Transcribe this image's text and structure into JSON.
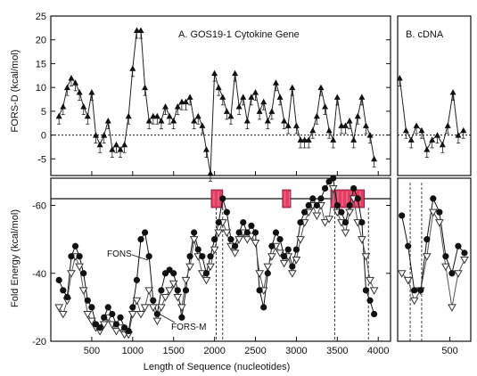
{
  "chart_data": [
    {
      "id": "A",
      "type": "line",
      "title": "A. GOS19-1 Cytokine Gene",
      "ylabel": "FORS-D (kcal/mol)",
      "xlim": [
        0,
        4150
      ],
      "ylim": [
        -8.5,
        25
      ],
      "yticks": [
        -5,
        0,
        5,
        10,
        15,
        20,
        25
      ],
      "series": [
        {
          "marker": "triangle",
          "x": [
            100,
            150,
            200,
            250,
            300,
            350,
            400,
            450,
            500,
            550,
            600,
            650,
            700,
            750,
            800,
            850,
            900,
            950,
            1000,
            1050,
            1100,
            1150,
            1200,
            1250,
            1300,
            1350,
            1400,
            1450,
            1500,
            1550,
            1600,
            1650,
            1700,
            1750,
            1800,
            1850,
            1900,
            1950,
            2000,
            2050,
            2100,
            2150,
            2200,
            2250,
            2300,
            2350,
            2400,
            2450,
            2500,
            2550,
            2600,
            2650,
            2700,
            2750,
            2800,
            2850,
            2900,
            2950,
            3000,
            3050,
            3100,
            3150,
            3200,
            3250,
            3300,
            3350,
            3400,
            3450,
            3500,
            3550,
            3600,
            3650,
            3700,
            3750,
            3800,
            3850,
            3900,
            3950
          ],
          "y": [
            4,
            6,
            10,
            12,
            11,
            9,
            6,
            4,
            9,
            0,
            -2,
            0,
            3,
            -3,
            -2,
            -3,
            -2,
            4,
            14,
            22,
            22,
            10,
            3,
            4,
            4,
            3,
            6,
            4,
            3,
            6,
            7,
            7,
            8,
            3,
            4,
            2,
            -3,
            -8,
            13,
            10,
            8,
            5,
            4,
            13,
            6,
            8,
            3,
            8,
            9,
            5,
            7,
            3,
            5,
            11,
            8,
            3,
            2,
            10,
            2,
            -1,
            -1,
            -1,
            1,
            4,
            10,
            6,
            1,
            -1,
            8,
            2,
            2,
            3,
            -1,
            4,
            8,
            2,
            0,
            -5
          ]
        }
      ],
      "reference_line": 0
    },
    {
      "id": "B",
      "type": "line",
      "title": "B. cDNA",
      "ylim": [
        -8.5,
        25
      ],
      "series": [
        {
          "marker": "triangle",
          "x": [
            20,
            80,
            130,
            180,
            230,
            280,
            330,
            380,
            430,
            480,
            530,
            580,
            630
          ],
          "y": [
            12,
            1,
            -1,
            2,
            1,
            -3,
            -1,
            0,
            -2,
            2,
            9,
            0,
            1
          ]
        }
      ]
    },
    {
      "id": "A-lower",
      "type": "line",
      "xlabel": "Length of Sequence (nucleotides)",
      "ylabel": "Fold Energy (kcal/mol)",
      "xlim": [
        0,
        4150
      ],
      "ylim": [
        -20,
        -68
      ],
      "xticks": [
        500,
        1000,
        1500,
        2000,
        2500,
        3000,
        3500,
        4000
      ],
      "yticks": [
        -20,
        -40,
        -60
      ],
      "boxes": [
        [
          1960,
          2100
        ],
        [
          2830,
          2930
        ],
        [
          3420,
          3830
        ]
      ],
      "dashed_x": [
        2020,
        2100,
        3470,
        3880
      ],
      "annotations": [
        "FONS",
        "FORS-M"
      ],
      "series": [
        {
          "name": "FONS",
          "marker": "circle",
          "x": [
            100,
            150,
            200,
            250,
            300,
            350,
            400,
            450,
            500,
            550,
            600,
            650,
            700,
            750,
            800,
            850,
            900,
            950,
            1000,
            1050,
            1100,
            1150,
            1200,
            1250,
            1300,
            1350,
            1400,
            1450,
            1500,
            1550,
            1600,
            1650,
            1700,
            1750,
            1800,
            1850,
            1900,
            1950,
            2000,
            2050,
            2100,
            2150,
            2200,
            2250,
            2300,
            2350,
            2400,
            2450,
            2500,
            2550,
            2600,
            2650,
            2700,
            2750,
            2800,
            2850,
            2900,
            2950,
            3000,
            3050,
            3100,
            3150,
            3200,
            3250,
            3300,
            3350,
            3400,
            3450,
            3500,
            3550,
            3600,
            3650,
            3700,
            3750,
            3800,
            3850,
            3900,
            3950
          ],
          "y": [
            -38,
            -35,
            -33,
            -45,
            -48,
            -45,
            -40,
            -32,
            -30,
            -25,
            -24,
            -27,
            -30,
            -28,
            -25,
            -27,
            -24,
            -23,
            -30,
            -38,
            -50,
            -52,
            -45,
            -32,
            -28,
            -35,
            -40,
            -41,
            -40,
            -35,
            -27,
            -35,
            -45,
            -52,
            -47,
            -45,
            -40,
            -45,
            -50,
            -55,
            -62,
            -58,
            -50,
            -48,
            -52,
            -55,
            -52,
            -54,
            -52,
            -35,
            -30,
            -40,
            -48,
            -52,
            -50,
            -45,
            -47,
            -42,
            -47,
            -55,
            -58,
            -60,
            -62,
            -60,
            -62,
            -65,
            -67,
            -68,
            -60,
            -58,
            -55,
            -60,
            -65,
            -62,
            -55,
            -35,
            -32,
            -28
          ]
        },
        {
          "name": "FORS-M",
          "marker": "triangle-down",
          "x": [
            100,
            150,
            200,
            250,
            300,
            350,
            400,
            450,
            500,
            550,
            600,
            650,
            700,
            750,
            800,
            850,
            900,
            950,
            1000,
            1050,
            1100,
            1150,
            1200,
            1250,
            1300,
            1350,
            1400,
            1450,
            1500,
            1550,
            1600,
            1650,
            1700,
            1750,
            1800,
            1850,
            1900,
            1950,
            2000,
            2050,
            2100,
            2150,
            2200,
            2250,
            2300,
            2350,
            2400,
            2450,
            2500,
            2550,
            2600,
            2650,
            2700,
            2750,
            2800,
            2850,
            2900,
            2950,
            3000,
            3050,
            3100,
            3150,
            3200,
            3250,
            3300,
            3350,
            3400,
            3450,
            3500,
            3550,
            3600,
            3650,
            3700,
            3750,
            3800,
            3850,
            3900,
            3950
          ],
          "y": [
            -30,
            -28,
            -32,
            -40,
            -45,
            -42,
            -35,
            -28,
            -26,
            -24,
            -23,
            -25,
            -27,
            -25,
            -23,
            -24,
            -22,
            -22,
            -28,
            -32,
            -28,
            -30,
            -35,
            -30,
            -26,
            -30,
            -33,
            -35,
            -37,
            -33,
            -30,
            -38,
            -42,
            -50,
            -45,
            -40,
            -38,
            -42,
            -47,
            -52,
            -55,
            -52,
            -48,
            -46,
            -50,
            -52,
            -50,
            -51,
            -49,
            -40,
            -35,
            -42,
            -45,
            -48,
            -46,
            -43,
            -45,
            -40,
            -44,
            -50,
            -55,
            -58,
            -60,
            -57,
            -60,
            -55,
            -56,
            -65,
            -58,
            -55,
            -52,
            -58,
            -62,
            -55,
            -50,
            -45,
            -38,
            -35
          ]
        }
      ]
    },
    {
      "id": "B-lower",
      "type": "line",
      "xlim": [
        0,
        700
      ],
      "xticks": [
        500
      ],
      "ylim": [
        -20,
        -68
      ],
      "dashed_x": [
        120,
        230
      ],
      "series": [
        {
          "marker": "circle",
          "x": [
            40,
            100,
            160,
            220,
            280,
            340,
            400,
            460,
            520,
            580,
            640
          ],
          "y": [
            -57,
            -48,
            -35,
            -35,
            -50,
            -62,
            -58,
            -45,
            -40,
            -48,
            -46
          ]
        },
        {
          "marker": "triangle-down",
          "x": [
            40,
            100,
            160,
            220,
            280,
            340,
            400,
            460,
            520,
            580,
            640
          ],
          "y": [
            -40,
            -38,
            -32,
            -35,
            -45,
            -58,
            -55,
            -42,
            -30,
            -40,
            -44
          ]
        }
      ]
    }
  ]
}
